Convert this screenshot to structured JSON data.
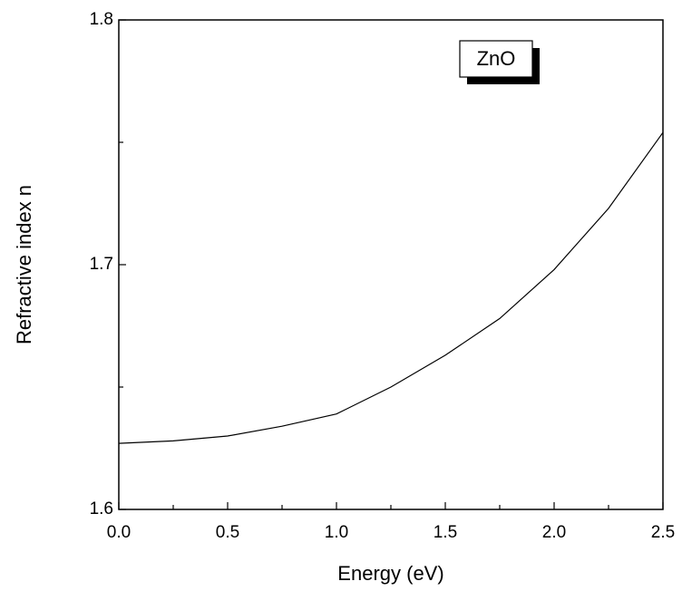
{
  "chart_data": {
    "type": "line",
    "xlabel": "Energy (eV)",
    "ylabel": "Refractive index n",
    "annotation": "ZnO",
    "x": [
      0,
      0.25,
      0.5,
      0.75,
      1.0,
      1.25,
      1.5,
      1.75,
      2.0,
      2.25,
      2.5
    ],
    "series": [
      {
        "color": "#000000",
        "values": [
          1.627,
          1.628,
          1.63,
          1.634,
          1.639,
          1.65,
          1.663,
          1.678,
          1.698,
          1.723,
          1.754
        ]
      }
    ],
    "xlim": [
      0,
      2.5
    ],
    "xticks": [
      {
        "value": 0,
        "label": "0.0"
      },
      0.5,
      {
        "value": 1,
        "label": "1.0"
      },
      1.5,
      {
        "value": 2,
        "label": "2.0"
      },
      2.5
    ],
    "xminorticks": [
      0.25,
      0.75,
      1.25,
      1.75,
      2.25
    ],
    "ylim": [
      1.6,
      1.8
    ],
    "yticks": [
      1.6,
      1.7,
      1.8
    ],
    "yminorticks": [
      1.65,
      1.75
    ]
  }
}
